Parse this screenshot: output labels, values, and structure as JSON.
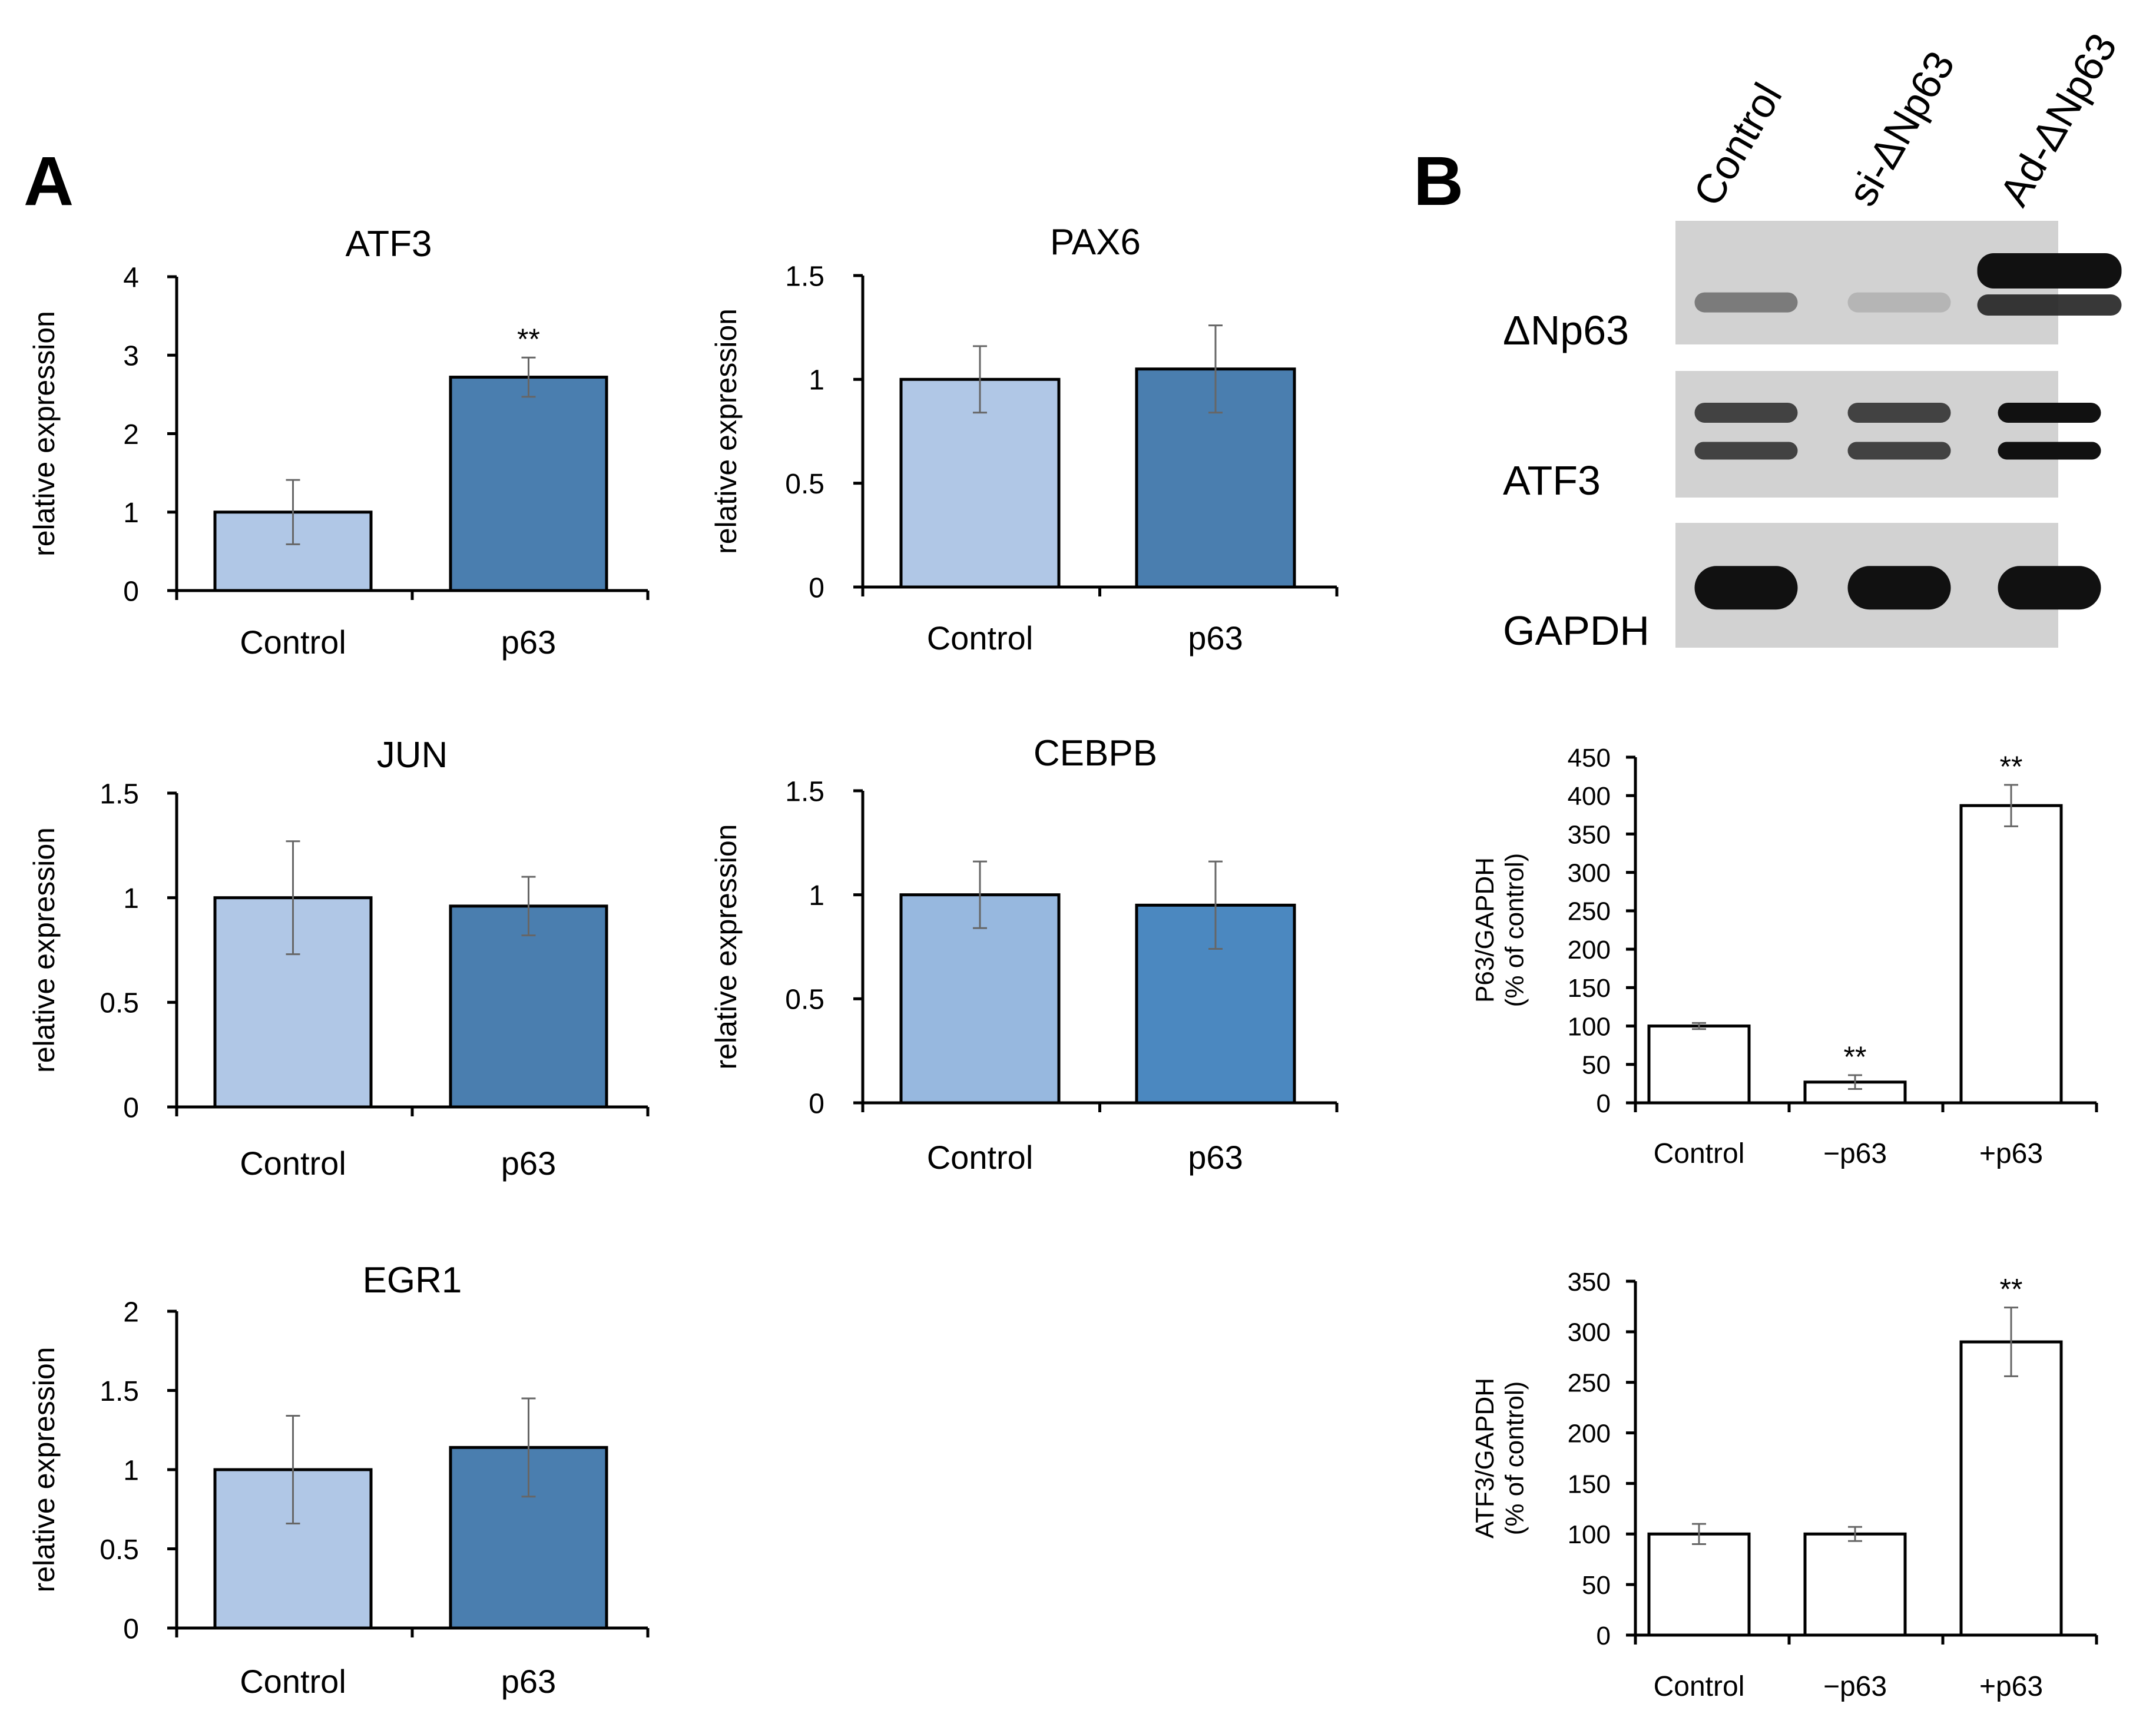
{
  "panels": {
    "a_label": "A",
    "b_label": "B"
  },
  "colors": {
    "control_bar": "#b0c7e6",
    "control_bar_cebpb": "#97b8df",
    "p63_bar": "#4a7eaf",
    "p63_bar_cebpb": "#4b88c0",
    "quant_bar": "#ffffff",
    "axis": "#000000",
    "error_bar": "#666666"
  },
  "blot": {
    "lanes": [
      "Control",
      "si-ΔNp63",
      "Ad-ΔNp63"
    ],
    "rows": [
      {
        "label": "ΔNp63",
        "intensity": [
          0.45,
          0.15,
          1.0
        ]
      },
      {
        "label": "ATF3",
        "intensity": [
          0.75,
          0.75,
          1.0
        ]
      },
      {
        "label": "GAPDH",
        "intensity": [
          1.0,
          1.0,
          1.0
        ]
      }
    ]
  },
  "chart_data": [
    {
      "type": "bar",
      "title": "ATF3",
      "ylabel": "relative expression",
      "categories": [
        "Control",
        "p63"
      ],
      "values": [
        1.0,
        2.72
      ],
      "errors": [
        0.41,
        0.25
      ],
      "ylim": [
        0,
        4
      ],
      "yticks": [
        "0",
        "1",
        "2",
        "3",
        "4"
      ],
      "annotations": [
        "",
        "**"
      ]
    },
    {
      "type": "bar",
      "title": "PAX6",
      "ylabel": "relative expression",
      "categories": [
        "Control",
        "p63"
      ],
      "values": [
        1.0,
        1.05
      ],
      "errors": [
        0.16,
        0.21
      ],
      "ylim": [
        0,
        1.5
      ],
      "yticks": [
        "0",
        "0.5",
        "1",
        "1.5"
      ],
      "annotations": [
        "",
        ""
      ]
    },
    {
      "type": "bar",
      "title": "JUN",
      "ylabel": "relative expression",
      "categories": [
        "Control",
        "p63"
      ],
      "values": [
        1.0,
        0.96
      ],
      "errors": [
        0.27,
        0.14
      ],
      "ylim": [
        0,
        1.5
      ],
      "yticks": [
        "0",
        "0.5",
        "1",
        "1.5"
      ],
      "annotations": [
        "",
        ""
      ]
    },
    {
      "type": "bar",
      "title": "CEBPB",
      "ylabel": "relative expression",
      "categories": [
        "Control",
        "p63"
      ],
      "values": [
        1.0,
        0.95
      ],
      "errors": [
        0.16,
        0.21
      ],
      "ylim": [
        0,
        1.5
      ],
      "yticks": [
        "0",
        "0.5",
        "1",
        "1.5"
      ],
      "annotations": [
        "",
        ""
      ]
    },
    {
      "type": "bar",
      "title": "EGR1",
      "ylabel": "relative expression",
      "categories": [
        "Control",
        "p63"
      ],
      "values": [
        1.0,
        1.14
      ],
      "errors": [
        0.34,
        0.31
      ],
      "ylim": [
        0,
        2
      ],
      "yticks": [
        "0",
        "0.5",
        "1",
        "1.5",
        "2"
      ],
      "annotations": [
        "",
        ""
      ]
    },
    {
      "type": "bar",
      "title": "",
      "ylabel": "P63/GAPDH\n(% of control)",
      "categories": [
        "Control",
        "−p63",
        "+p63"
      ],
      "values": [
        100,
        27,
        387
      ],
      "errors": [
        4,
        9,
        27
      ],
      "ylim": [
        0,
        450
      ],
      "yticks": [
        "0",
        "50",
        "100",
        "150",
        "200",
        "250",
        "300",
        "350",
        "400",
        "450"
      ],
      "annotations": [
        "",
        "**",
        "**"
      ]
    },
    {
      "type": "bar",
      "title": "",
      "ylabel": "ATF3/GAPDH\n(% of control)",
      "categories": [
        "Control",
        "−p63",
        "+p63"
      ],
      "values": [
        100,
        100,
        290
      ],
      "errors": [
        10,
        7,
        34
      ],
      "ylim": [
        0,
        350
      ],
      "yticks": [
        "0",
        "50",
        "100",
        "150",
        "200",
        "250",
        "300",
        "350"
      ],
      "annotations": [
        "",
        "",
        "**"
      ]
    }
  ]
}
